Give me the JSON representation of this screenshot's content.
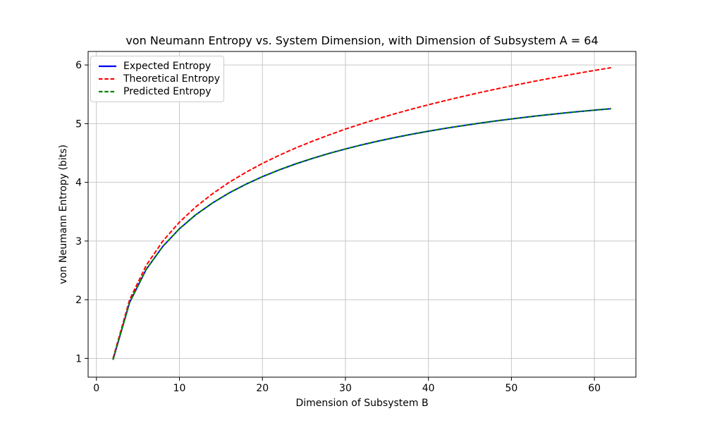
{
  "chart_data": {
    "type": "line",
    "title": "von Neumann Entropy vs. System Dimension, with Dimension of Subsystem A = 64",
    "xlabel": "Dimension of Subsystem B",
    "ylabel": "von Neumann Entropy (bits)",
    "xlim": [
      -1,
      65
    ],
    "ylim": [
      0.68,
      6.23
    ],
    "xticks": [
      0,
      10,
      20,
      30,
      40,
      50,
      60
    ],
    "yticks": [
      1,
      2,
      3,
      4,
      5,
      6
    ],
    "grid": true,
    "grid_color": "#c8c8c8",
    "spine_color": "#000000",
    "legend_position": "upper left",
    "x": [
      2,
      4,
      6,
      8,
      10,
      12,
      14,
      16,
      18,
      20,
      22,
      24,
      26,
      28,
      30,
      32,
      34,
      36,
      38,
      40,
      42,
      44,
      46,
      48,
      50,
      52,
      54,
      56,
      58,
      60,
      62
    ],
    "series": [
      {
        "name": "Expected Entropy",
        "color": "#0000ff",
        "style": "solid",
        "values": [
          0.977,
          1.955,
          2.517,
          2.91,
          3.209,
          3.45,
          3.65,
          3.82,
          3.967,
          4.097,
          4.211,
          4.314,
          4.407,
          4.492,
          4.569,
          4.639,
          4.704,
          4.764,
          4.82,
          4.871,
          4.919,
          4.963,
          5.005,
          5.044,
          5.08,
          5.114,
          5.146,
          5.176,
          5.204,
          5.231,
          5.255
        ]
      },
      {
        "name": "Theoretical Entropy",
        "color": "#ff0000",
        "style": "dashed",
        "values": [
          1.0,
          2.0,
          2.585,
          3.0,
          3.322,
          3.585,
          3.807,
          4.0,
          4.17,
          4.322,
          4.459,
          4.585,
          4.7,
          4.807,
          4.907,
          5.0,
          5.087,
          5.17,
          5.248,
          5.322,
          5.392,
          5.459,
          5.524,
          5.585,
          5.644,
          5.7,
          5.755,
          5.807,
          5.858,
          5.907,
          5.954
        ]
      },
      {
        "name": "Predicted Entropy",
        "color": "#008000",
        "style": "dashed",
        "values": [
          0.977,
          1.955,
          2.517,
          2.91,
          3.209,
          3.45,
          3.65,
          3.82,
          3.967,
          4.097,
          4.211,
          4.314,
          4.407,
          4.492,
          4.569,
          4.639,
          4.704,
          4.764,
          4.82,
          4.871,
          4.919,
          4.963,
          5.005,
          5.044,
          5.08,
          5.114,
          5.146,
          5.176,
          5.204,
          5.231,
          5.255
        ]
      }
    ]
  }
}
